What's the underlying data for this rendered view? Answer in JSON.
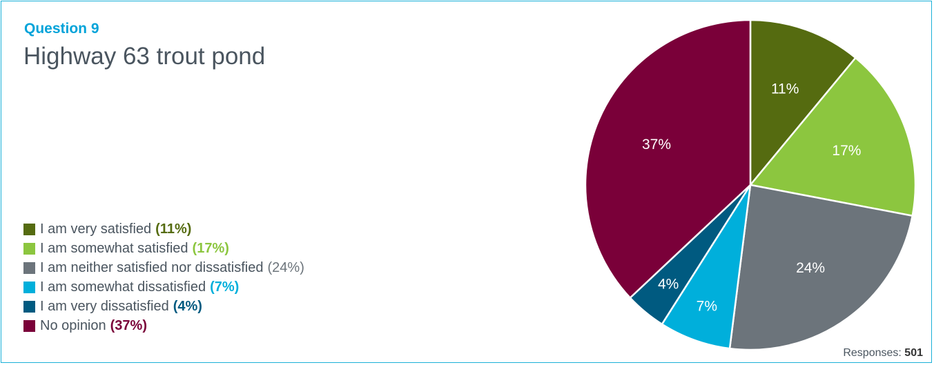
{
  "question_label": "Question 9",
  "title": "Highway 63 trout pond",
  "responses_label": "Responses:",
  "responses_count": "501",
  "chart_data": {
    "type": "pie",
    "title": "Highway 63 trout pond",
    "slices": [
      {
        "label": "I am very satisfied",
        "value": 11,
        "pct_text": "(11%)",
        "slice_text": "11%",
        "color": "#556b10",
        "legend_pct_color": "#556b10",
        "bold": true
      },
      {
        "label": "I am somewhat satisfied",
        "value": 17,
        "pct_text": "(17%)",
        "slice_text": "17%",
        "color": "#8cc63f",
        "legend_pct_color": "#8cc63f",
        "bold": true
      },
      {
        "label": "I am neither satisfied nor dissatisfied",
        "value": 24,
        "pct_text": "(24%)",
        "slice_text": "24%",
        "color": "#6c747b",
        "legend_pct_color": "#6c747b",
        "bold": false
      },
      {
        "label": "I am somewhat dissatisfied",
        "value": 7,
        "pct_text": "(7%)",
        "slice_text": "7%",
        "color": "#00afdb",
        "legend_pct_color": "#00afdb",
        "bold": true
      },
      {
        "label": "I am very dissatisfied",
        "value": 4,
        "pct_text": "(4%)",
        "slice_text": "4%",
        "color": "#005a80",
        "legend_pct_color": "#005a80",
        "bold": true
      },
      {
        "label": "No opinion",
        "value": 37,
        "pct_text": "(37%)",
        "slice_text": "37%",
        "color": "#7a0039",
        "legend_pct_color": "#7a0039",
        "bold": true
      }
    ],
    "legend_position": "left"
  }
}
